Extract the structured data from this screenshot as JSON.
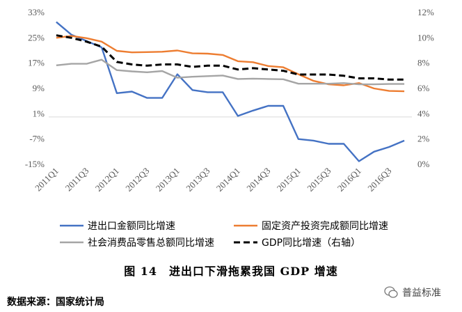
{
  "figure": {
    "caption": "图 14　进出口下滑拖累我国 GDP 增速",
    "source": "数据来源：国家统计局",
    "watermark": "普益标准"
  },
  "chart_data": {
    "type": "line",
    "categories": [
      "2011Q1",
      "2011Q2",
      "2011Q3",
      "2011Q4",
      "2012Q1",
      "2012Q2",
      "2012Q3",
      "2012Q4",
      "2013Q1",
      "2013Q2",
      "2013Q3",
      "2013Q4",
      "2014Q1",
      "2014Q2",
      "2014Q3",
      "2014Q4",
      "2015Q1",
      "2015Q2",
      "2015Q3",
      "2015Q4",
      "2016Q1",
      "2016Q2",
      "2016Q3",
      "2016Q4"
    ],
    "x_tick_labels": [
      "2011Q1",
      "2011Q3",
      "2012Q1",
      "2012Q3",
      "2013Q1",
      "2013Q3",
      "2014Q1",
      "2014Q3",
      "2015Q1",
      "2015Q3",
      "2016Q1",
      "2016Q3"
    ],
    "y_left": {
      "ticks": [
        "33%",
        "25%",
        "17%",
        "9%",
        "1%",
        "-7%",
        "-15%"
      ],
      "min": -15,
      "max": 33
    },
    "y_right": {
      "ticks": [
        "12%",
        "10%",
        "8%",
        "6%",
        "4%",
        "2%",
        "0%"
      ],
      "min": 0,
      "max": 12
    },
    "series": [
      {
        "name": "进出口金额同比增速",
        "axis": "left",
        "color": "#4472C4",
        "style": "solid",
        "values": [
          30.0,
          26.0,
          24.0,
          22.0,
          7.5,
          8.0,
          6.0,
          6.0,
          13.5,
          8.5,
          7.8,
          7.8,
          0.3,
          2.0,
          3.5,
          3.5,
          -7.0,
          -7.5,
          -8.5,
          -8.5,
          -14.0,
          -11.0,
          -9.5,
          -7.5
        ]
      },
      {
        "name": "固定资产投资完成额同比增速",
        "axis": "left",
        "color": "#ED7D31",
        "style": "solid",
        "values": [
          25.0,
          25.6,
          24.9,
          23.8,
          20.9,
          20.4,
          20.5,
          20.6,
          21.0,
          20.1,
          20.0,
          19.6,
          17.6,
          17.3,
          16.1,
          15.7,
          13.5,
          11.4,
          10.3,
          10.0,
          10.7,
          9.0,
          8.2,
          8.1
        ]
      },
      {
        "name": "社会消费品零售总额同比增速",
        "axis": "left",
        "color": "#A5A5A5",
        "style": "solid",
        "values": [
          16.3,
          16.8,
          16.8,
          18.1,
          14.8,
          14.4,
          14.1,
          14.5,
          12.4,
          12.7,
          12.9,
          13.1,
          12.0,
          12.1,
          12.0,
          11.9,
          10.5,
          10.5,
          10.5,
          10.7,
          10.3,
          10.3,
          10.4,
          10.4
        ]
      },
      {
        "name": "GDP同比增速（右轴）",
        "axis": "right",
        "color": "#000000",
        "style": "dashed",
        "values": [
          10.2,
          10.0,
          9.7,
          9.3,
          8.1,
          7.9,
          7.8,
          7.9,
          7.9,
          7.7,
          7.8,
          7.8,
          7.5,
          7.6,
          7.5,
          7.4,
          7.1,
          7.1,
          7.1,
          7.0,
          6.8,
          6.8,
          6.7,
          6.7
        ]
      }
    ],
    "legend_position": "bottom",
    "grid": false
  }
}
